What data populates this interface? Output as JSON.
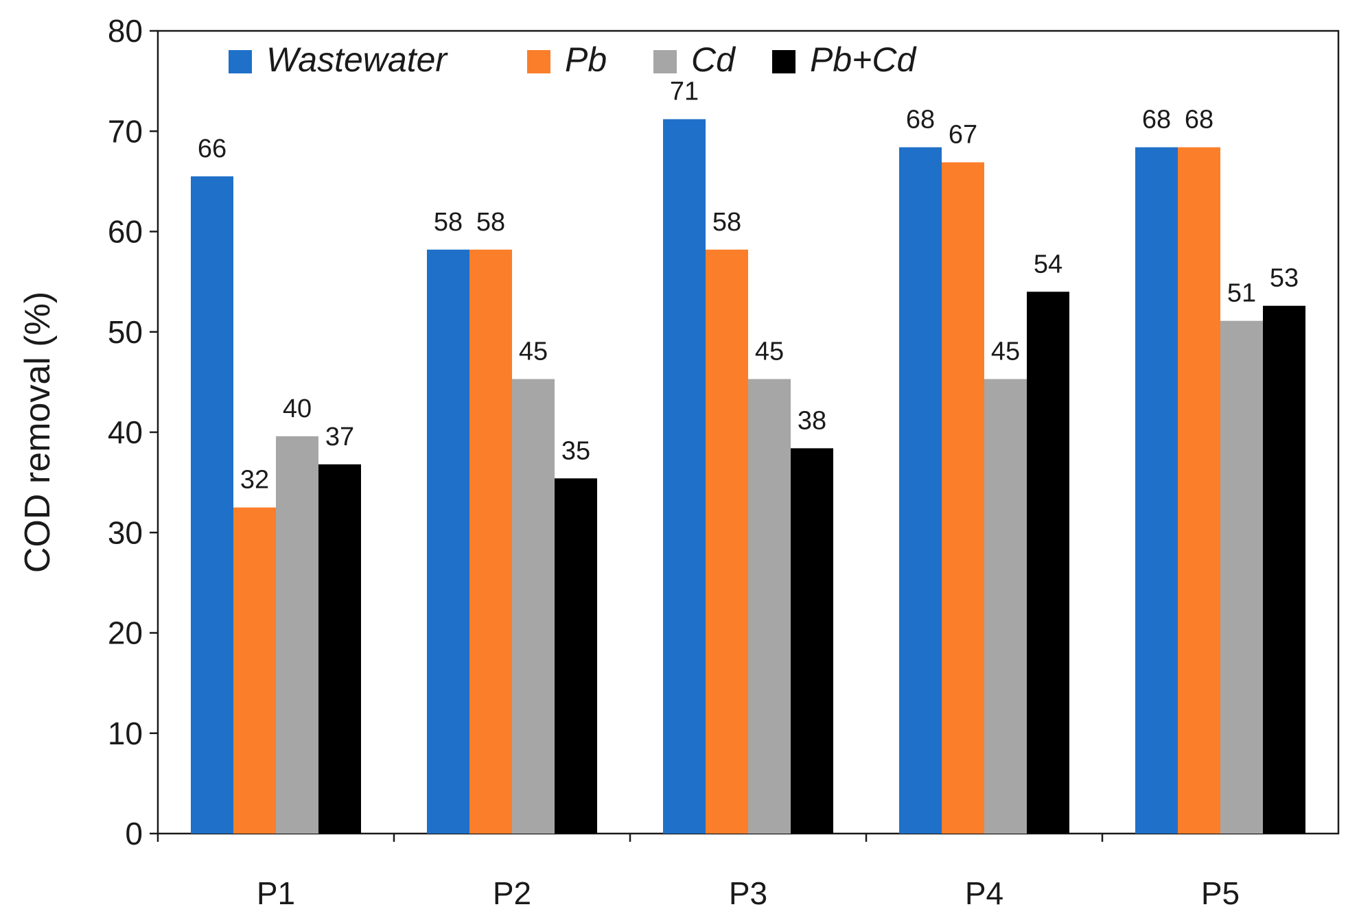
{
  "chart_data": {
    "type": "bar",
    "title": "",
    "xlabel": "",
    "ylabel": "COD removal (%)",
    "ylim": [
      0,
      80
    ],
    "yticks": [
      0,
      10,
      20,
      30,
      40,
      50,
      60,
      70,
      80
    ],
    "grid": false,
    "legend_position": "top",
    "categories": [
      "P1",
      "P2",
      "P3",
      "P4",
      "P5"
    ],
    "series": [
      {
        "name": "Wastewater",
        "color": "#1f70c8",
        "values": [
          65.5,
          58.2,
          71.2,
          68.4,
          68.4
        ],
        "labels": [
          "66",
          "58",
          "71",
          "68",
          "68"
        ]
      },
      {
        "name": "Pb",
        "color": "#fb7e2a",
        "values": [
          32.5,
          58.2,
          58.2,
          66.9,
          68.4
        ],
        "labels": [
          "32",
          "58",
          "58",
          "67",
          "68"
        ]
      },
      {
        "name": "Cd",
        "color": "#a6a6a6",
        "values": [
          39.6,
          45.3,
          45.3,
          45.3,
          51.1
        ],
        "labels": [
          "40",
          "45",
          "45",
          "45",
          "51"
        ]
      },
      {
        "name": "Pb+Cd",
        "color": "#000000",
        "values": [
          36.8,
          35.4,
          38.4,
          54.0,
          52.6
        ],
        "labels": [
          "37",
          "35",
          "38",
          "54",
          "53"
        ]
      }
    ]
  }
}
